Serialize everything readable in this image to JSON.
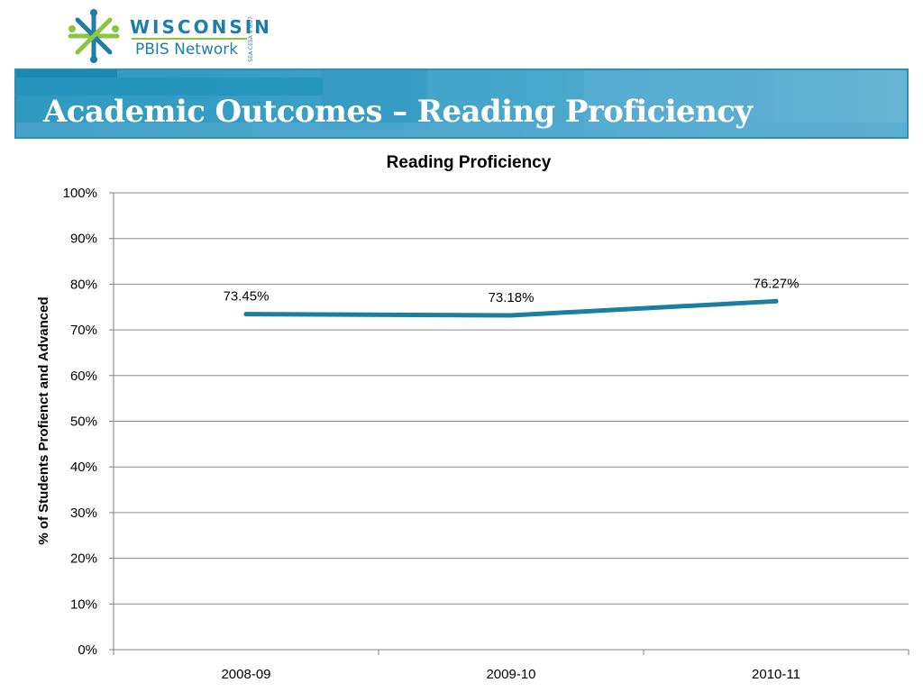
{
  "header": {
    "logo": {
      "title": "WISCONSIN",
      "subtitle": "PBIS Network",
      "side_text": "SEA CESA 9 9/07"
    },
    "page_title": "Academic Outcomes – Reading Proficiency"
  },
  "colors": {
    "banner": "#3aa0c6",
    "line": "#1a7fa0",
    "logo_blue": "#1d7eab",
    "logo_green": "#8cc63f"
  },
  "chart_data": {
    "type": "line",
    "title": "Reading Proficiency",
    "xlabel": "",
    "ylabel": "% of Students Profienct and Advanced",
    "categories": [
      "2008-09",
      "2009-10",
      "2010-11"
    ],
    "series": [
      {
        "values": [
          73.45,
          73.18,
          76.27
        ],
        "data_labels": [
          "73.45%",
          "73.18%",
          "76.27%"
        ]
      }
    ],
    "y_ticks": [
      0,
      10,
      20,
      30,
      40,
      50,
      60,
      70,
      80,
      90,
      100
    ],
    "y_tick_labels": [
      "0%",
      "10%",
      "20%",
      "30%",
      "40%",
      "50%",
      "60%",
      "70%",
      "80%",
      "90%",
      "100%"
    ],
    "ylim": [
      0,
      100
    ],
    "grid": true,
    "legend": "none"
  }
}
